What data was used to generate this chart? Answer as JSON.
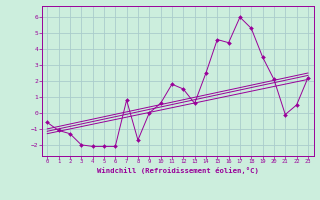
{
  "xlabel": "Windchill (Refroidissement éolien,°C)",
  "bg_color": "#cceedd",
  "grid_color": "#aacccc",
  "line_color": "#990099",
  "xlim": [
    -0.5,
    23.5
  ],
  "ylim": [
    -2.7,
    6.7
  ],
  "xticks": [
    0,
    1,
    2,
    3,
    4,
    5,
    6,
    7,
    8,
    9,
    10,
    11,
    12,
    13,
    14,
    15,
    16,
    17,
    18,
    19,
    20,
    21,
    22,
    23
  ],
  "yticks": [
    -2,
    -1,
    0,
    1,
    2,
    3,
    4,
    5,
    6
  ],
  "scatter_x": [
    0,
    1,
    2,
    3,
    4,
    5,
    6,
    7,
    8,
    9,
    10,
    11,
    12,
    13,
    14,
    15,
    16,
    17,
    18,
    19,
    20,
    21,
    22,
    23
  ],
  "scatter_y": [
    -0.6,
    -1.1,
    -1.3,
    -2.0,
    -2.1,
    -2.1,
    -2.1,
    0.8,
    -1.7,
    0.0,
    0.6,
    1.8,
    1.5,
    0.6,
    2.5,
    4.6,
    4.4,
    6.0,
    5.3,
    3.5,
    2.1,
    -0.1,
    0.5,
    2.2
  ],
  "line1_x": [
    0,
    23
  ],
  "line1_y": [
    -1.15,
    2.35
  ],
  "line2_x": [
    0,
    23
  ],
  "line2_y": [
    -1.0,
    2.5
  ],
  "line3_x": [
    0,
    23
  ],
  "line3_y": [
    -1.3,
    2.1
  ]
}
